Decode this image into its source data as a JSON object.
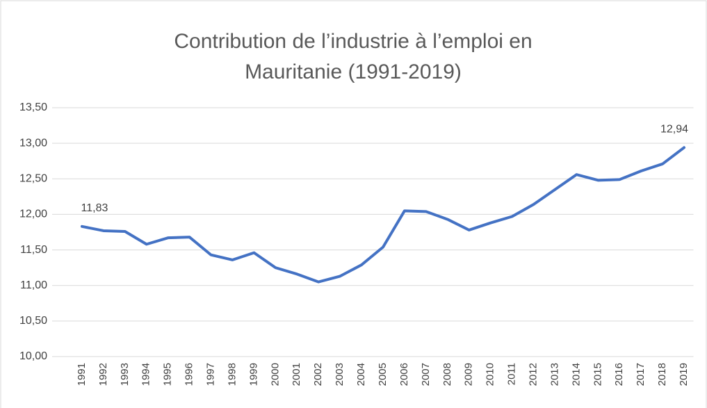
{
  "chart_data": {
    "type": "line",
    "title": "Contribution de l’industrie à l’emploi en Mauritanie (1991-2019)",
    "categories": [
      "1991",
      "1992",
      "1993",
      "1994",
      "1995",
      "1996",
      "1997",
      "1998",
      "1999",
      "2000",
      "2001",
      "2002",
      "2003",
      "2004",
      "2005",
      "2006",
      "2007",
      "2008",
      "2009",
      "2010",
      "2011",
      "2012",
      "2013",
      "2014",
      "2015",
      "2016",
      "2017",
      "2018",
      "2019"
    ],
    "series": [
      {
        "name": "Contribution de l’industrie",
        "color": "#4472c4",
        "values": [
          11.83,
          11.77,
          11.76,
          11.58,
          11.67,
          11.68,
          11.43,
          11.36,
          11.46,
          11.25,
          11.16,
          11.05,
          11.13,
          11.29,
          11.54,
          12.05,
          12.04,
          11.93,
          11.78,
          11.88,
          11.97,
          12.14,
          12.35,
          12.56,
          12.48,
          12.49,
          12.61,
          12.71,
          12.94
        ],
        "value_labels": [
          "11,83",
          null,
          null,
          null,
          null,
          null,
          null,
          null,
          null,
          null,
          null,
          null,
          null,
          null,
          null,
          null,
          null,
          null,
          null,
          null,
          null,
          null,
          null,
          null,
          null,
          null,
          null,
          null,
          "12,94"
        ]
      }
    ],
    "ylim": [
      10,
      13.5
    ],
    "yticks": [
      {
        "value": 10,
        "label": "10,00"
      },
      {
        "value": 10.5,
        "label": "10,50"
      },
      {
        "value": 11,
        "label": "11,00"
      },
      {
        "value": 11.5,
        "label": "11,50"
      },
      {
        "value": 12,
        "label": "12,00"
      },
      {
        "value": 12.5,
        "label": "12,50"
      },
      {
        "value": 13,
        "label": "13,00"
      },
      {
        "value": 13.5,
        "label": "13,50"
      }
    ],
    "grid": true
  }
}
